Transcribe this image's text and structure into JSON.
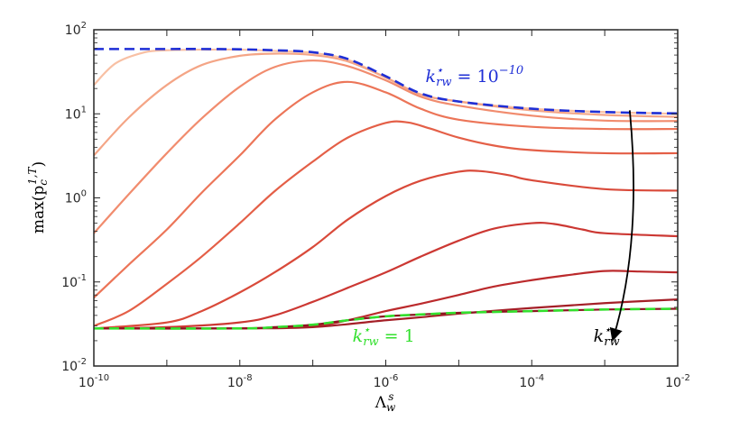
{
  "chart_data": {
    "type": "line",
    "title": "",
    "xlabel": "Λ",
    "xlabel_sub": "w",
    "xlabel_sup": "s",
    "ylabel": "max(p",
    "ylabel_sub": "c",
    "ylabel_sup": "1,T",
    "ylabel_close": ")",
    "x_scale": "log",
    "y_scale": "log",
    "xlim": [
      1e-10,
      0.01
    ],
    "ylim": [
      0.01,
      100
    ],
    "grid": false,
    "x_ticks": [
      {
        "value": 1e-10,
        "base": "10",
        "exp": "-10"
      },
      {
        "value": 1e-08,
        "base": "10",
        "exp": "-8"
      },
      {
        "value": 1e-06,
        "base": "10",
        "exp": "-6"
      },
      {
        "value": 0.0001,
        "base": "10",
        "exp": "-4"
      },
      {
        "value": 0.01,
        "base": "10",
        "exp": "-2"
      }
    ],
    "y_ticks": [
      {
        "value": 0.01,
        "base": "10",
        "exp": "-2"
      },
      {
        "value": 0.1,
        "base": "10",
        "exp": "-1"
      },
      {
        "value": 1,
        "base": "10",
        "exp": "0"
      },
      {
        "value": 10,
        "base": "10",
        "exp": "1"
      },
      {
        "value": 100,
        "base": "10",
        "exp": "2"
      }
    ],
    "series": [
      {
        "name": "curve-1",
        "color": "#f8c0a4",
        "x": [
          1e-10,
          2e-10,
          5e-10,
          1e-09,
          3e-09,
          1e-08,
          3e-08,
          1e-07,
          3e-07,
          1e-06,
          3e-06,
          1e-05,
          0.0001,
          0.001,
          0.01
        ],
        "y": [
          22,
          40,
          54,
          57,
          58,
          58,
          56,
          53,
          44,
          27,
          17,
          14,
          11.5,
          10.5,
          10
        ]
      },
      {
        "name": "curve-2",
        "color": "#f4a586",
        "x": [
          1e-10,
          3e-10,
          1e-09,
          3e-09,
          1e-08,
          3e-08,
          1e-07,
          3e-07,
          1e-06,
          3e-06,
          1e-05,
          0.0001,
          0.001,
          0.01
        ],
        "y": [
          3.2,
          9,
          22,
          38,
          49,
          52,
          50,
          42,
          27,
          17,
          14,
          11,
          9.7,
          9.2
        ]
      },
      {
        "name": "curve-3",
        "color": "#f18c6e",
        "x": [
          1e-10,
          3e-10,
          1e-09,
          3e-09,
          1e-08,
          3e-08,
          1e-07,
          3e-07,
          1e-06,
          3e-06,
          1e-05,
          0.0001,
          0.001,
          0.01
        ],
        "y": [
          0.38,
          1.1,
          3.4,
          8.8,
          21,
          36,
          43,
          37,
          25,
          16,
          12.5,
          9.5,
          8.3,
          8.2
        ]
      },
      {
        "name": "curve-4",
        "color": "#ec7558",
        "x": [
          1e-10,
          3e-10,
          1e-09,
          3e-09,
          1e-08,
          3e-08,
          1e-07,
          3e-07,
          1e-06,
          3e-06,
          1e-05,
          0.0001,
          0.001,
          0.01
        ],
        "y": [
          0.065,
          0.16,
          0.42,
          1.15,
          3.2,
          8.5,
          18,
          24,
          18,
          11.5,
          8.5,
          7.0,
          6.6,
          6.6
        ]
      },
      {
        "name": "curve-5",
        "color": "#e45f47",
        "x": [
          1e-10,
          3e-10,
          1e-09,
          3e-09,
          1e-08,
          3e-08,
          1e-07,
          3e-07,
          1e-06,
          2e-06,
          4e-06,
          1e-05,
          3e-05,
          0.0001,
          0.001,
          0.01
        ],
        "y": [
          0.03,
          0.045,
          0.095,
          0.2,
          0.5,
          1.2,
          2.7,
          5.2,
          7.8,
          7.9,
          6.7,
          5.2,
          4.2,
          3.7,
          3.4,
          3.4
        ]
      },
      {
        "name": "curve-6",
        "color": "#d94a3a",
        "x": [
          1e-10,
          1e-09,
          3e-09,
          1e-08,
          3e-08,
          1e-07,
          3e-07,
          1e-06,
          3e-06,
          1e-05,
          2e-05,
          5e-05,
          0.0001,
          0.001,
          0.01
        ],
        "y": [
          0.028,
          0.033,
          0.045,
          0.075,
          0.13,
          0.26,
          0.55,
          1.05,
          1.6,
          2.05,
          2.08,
          1.85,
          1.62,
          1.27,
          1.22
        ]
      },
      {
        "name": "curve-7",
        "color": "#cc3833",
        "x": [
          1e-10,
          1e-09,
          1e-08,
          3e-08,
          1e-07,
          3e-07,
          1e-06,
          3e-06,
          1e-05,
          3e-05,
          0.0001,
          0.0002,
          0.0005,
          0.001,
          0.01
        ],
        "y": [
          0.028,
          0.029,
          0.033,
          0.04,
          0.058,
          0.085,
          0.13,
          0.2,
          0.31,
          0.43,
          0.5,
          0.49,
          0.42,
          0.38,
          0.35
        ]
      },
      {
        "name": "curve-8",
        "color": "#bb2a2c",
        "x": [
          1e-10,
          1e-08,
          1e-07,
          3e-07,
          1e-06,
          3e-06,
          1e-05,
          3e-05,
          0.0001,
          0.0003,
          0.001,
          0.003,
          0.01
        ],
        "y": [
          0.028,
          0.028,
          0.03,
          0.035,
          0.045,
          0.055,
          0.07,
          0.088,
          0.105,
          0.12,
          0.135,
          0.133,
          0.13
        ]
      },
      {
        "name": "curve-9",
        "color": "#a41f27",
        "x": [
          1e-10,
          1e-08,
          1e-07,
          1e-06,
          3e-06,
          1e-05,
          0.0001,
          0.001,
          0.01
        ],
        "y": [
          0.028,
          0.028,
          0.029,
          0.035,
          0.038,
          0.042,
          0.049,
          0.056,
          0.062
        ]
      },
      {
        "name": "curve-10",
        "color": "#8a1620",
        "x": [
          1e-10,
          1e-08,
          3e-08,
          1e-07,
          3e-07,
          1e-06,
          3e-06,
          1e-05,
          0.0001,
          0.001,
          0.01
        ],
        "y": [
          0.028,
          0.028,
          0.029,
          0.031,
          0.035,
          0.039,
          0.041,
          0.043,
          0.045,
          0.047,
          0.048
        ]
      }
    ],
    "reference_lines": [
      {
        "name": "upper-limit-dashed",
        "color": "#1f2fd6",
        "dash": true,
        "x": [
          1e-10,
          1e-09,
          3e-09,
          1e-08,
          3e-08,
          1e-07,
          3e-07,
          1e-06,
          3e-06,
          1e-05,
          0.0001,
          0.001,
          0.01
        ],
        "y": [
          59,
          59,
          59,
          58.5,
          57,
          54,
          45,
          28,
          17.5,
          14,
          11.5,
          10.5,
          10.1
        ]
      },
      {
        "name": "lower-limit-dashed",
        "color": "#33e02e",
        "dash": true,
        "x": [
          1e-10,
          1e-08,
          3e-08,
          1e-07,
          3e-07,
          1e-06,
          3e-06,
          1e-05,
          0.0001,
          0.001,
          0.01
        ],
        "y": [
          0.028,
          0.028,
          0.029,
          0.031,
          0.035,
          0.039,
          0.041,
          0.043,
          0.045,
          0.047,
          0.048
        ]
      }
    ],
    "annotations": [
      {
        "name": "annotation-upper",
        "color": "#1f2fd6",
        "base": "k",
        "sub": "rw",
        "sup": "⋆",
        "rest": " = 10",
        "rest_sup": "−10",
        "at_x": 3.5e-06,
        "at_y": 24
      },
      {
        "name": "annotation-lower",
        "color": "#33e02e",
        "base": "k",
        "sub": "rw",
        "sup": "⋆",
        "rest": " = 1",
        "rest_sup": "",
        "at_x": 3.5e-07,
        "at_y": 0.0195
      },
      {
        "name": "annotation-arrow-label",
        "color": "#000000",
        "base": "k",
        "sub": "rw",
        "sup": "⋆",
        "rest": "",
        "rest_sup": "",
        "at_x": 0.0007,
        "at_y": 0.0195
      }
    ],
    "arrow": {
      "color": "#000000",
      "from": [
        0.0022,
        11
      ],
      "to": [
        0.0013,
        0.021
      ]
    }
  }
}
